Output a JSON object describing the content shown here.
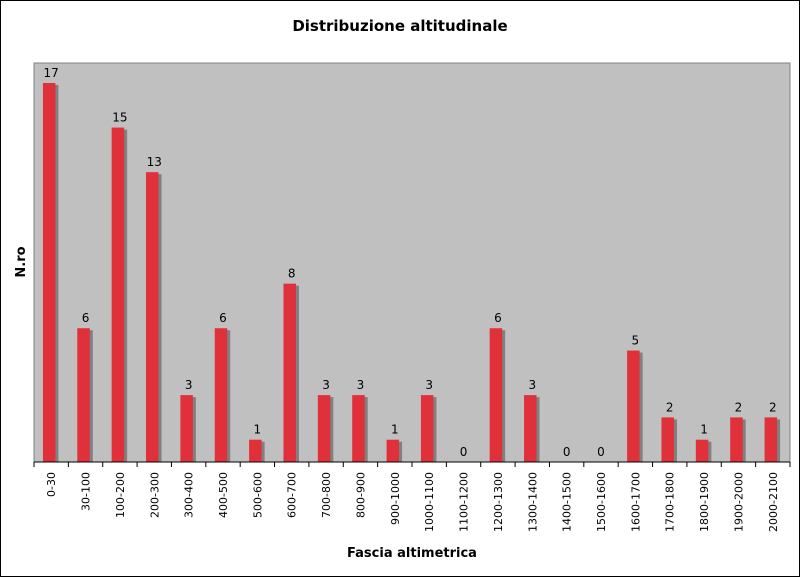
{
  "chart_data": {
    "type": "bar",
    "title": "Distribuzione altitudinale",
    "xlabel": "Fascia altimetrica",
    "ylabel": "N.ro",
    "categories": [
      "0-30",
      "30-100",
      "100-200",
      "200-300",
      "300-400",
      "400-500",
      "500-600",
      "600-700",
      "700-800",
      "800-900",
      "900-1000",
      "1000-1100",
      "1100-1200",
      "1200-1300",
      "1300-1400",
      "1400-1500",
      "1500-1600",
      "1600-1700",
      "1700-1800",
      "1800-1900",
      "1900-2000",
      "2000-2100"
    ],
    "values": [
      17,
      6,
      15,
      13,
      3,
      6,
      1,
      8,
      3,
      3,
      1,
      3,
      0,
      6,
      3,
      0,
      0,
      5,
      2,
      1,
      2,
      2
    ],
    "value_labels": [
      "17",
      "6",
      "15",
      "13",
      "3",
      "6",
      "1",
      "8",
      "3",
      "3",
      "1",
      "3",
      "0",
      "6",
      "3",
      "0",
      "0",
      "5",
      "2",
      "1",
      "2",
      "2"
    ],
    "ylim": [
      0,
      17
    ],
    "grid": false,
    "legend": "none",
    "colors": {
      "bar": "#e0303a",
      "shadow": "#808080",
      "plot_background": "#c0c0c0",
      "chart_background": "#ffffff"
    }
  }
}
